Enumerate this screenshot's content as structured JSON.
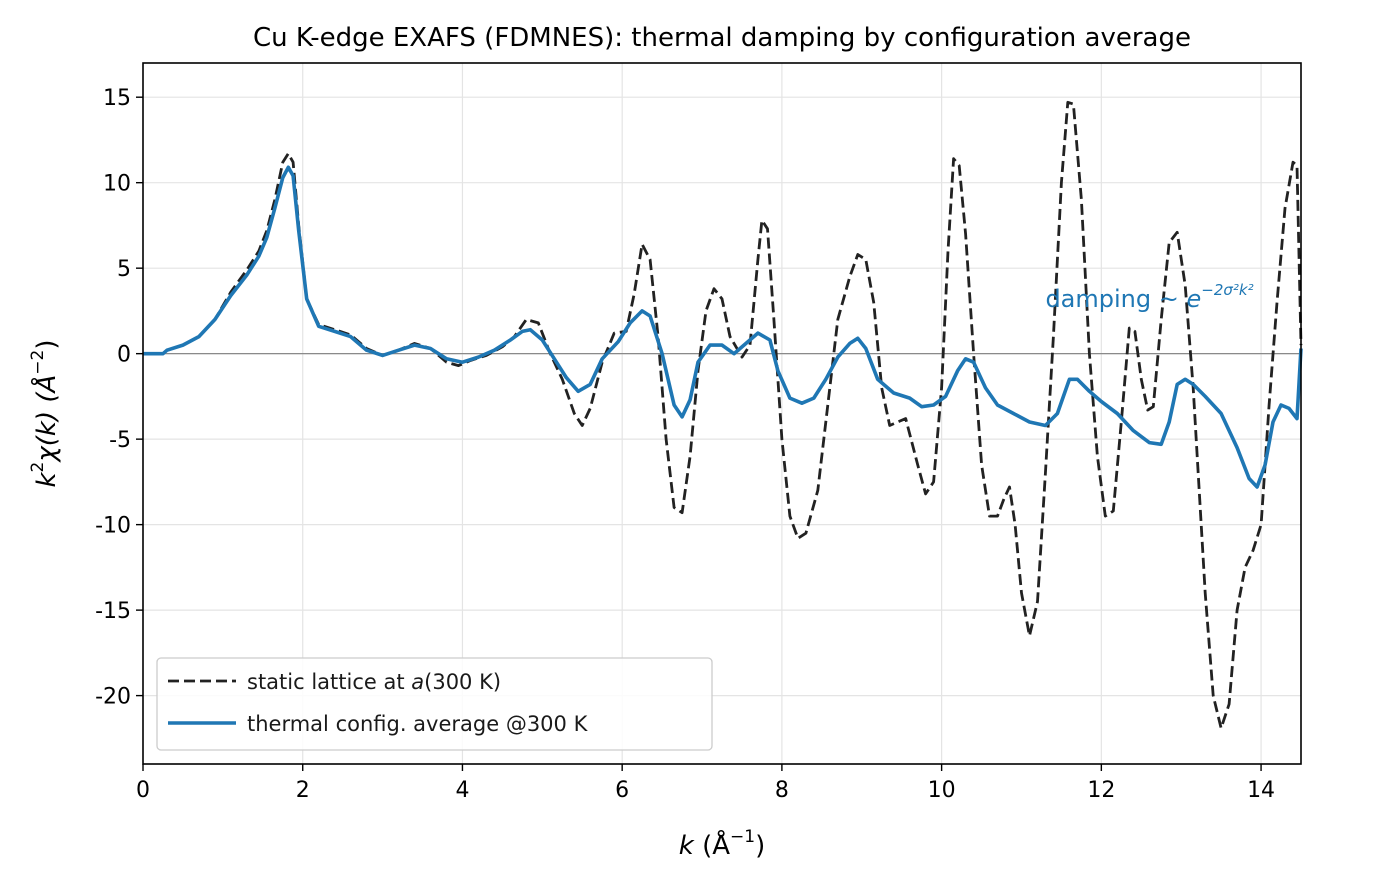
{
  "chart_data": {
    "type": "line",
    "title": "Cu K-edge EXAFS (FDMNES): thermal damping by configuration average",
    "xlabel": {
      "base": "k",
      "unit": " (Å",
      "sup": "−1",
      "close": ")"
    },
    "ylabel": {
      "pre": "k",
      "sup1": "2",
      "mid": "χ(k) (Å",
      "sup2": "−2",
      "close": ")"
    },
    "xlim": [
      0,
      14.5
    ],
    "ylim": [
      -24,
      17
    ],
    "xticks": [
      0,
      2,
      4,
      6,
      8,
      10,
      12,
      14
    ],
    "xtick_labels": [
      "0",
      "2",
      "4",
      "6",
      "8",
      "10",
      "12",
      "14"
    ],
    "yticks": [
      -20,
      -15,
      -10,
      -5,
      0,
      5,
      10,
      15
    ],
    "ytick_labels": [
      "-20",
      "-15",
      "-10",
      "-5",
      "0",
      "5",
      "10",
      "15"
    ],
    "grid": true,
    "legend_position": "lower-left",
    "zero_line": true,
    "annotation": {
      "text": "damping  ~ ",
      "math": "e",
      "sup": "−2σ²k²",
      "x": 11.3,
      "y": 3.2,
      "color": "#1f77b4"
    },
    "series": [
      {
        "name": "static lattice at ",
        "name_math": "a",
        "name_suffix": "(300 K)",
        "style": "dashed",
        "color": "#222222",
        "points": [
          [
            0.0,
            0.0
          ],
          [
            0.25,
            0.0
          ],
          [
            0.3,
            0.2
          ],
          [
            0.5,
            0.5
          ],
          [
            0.7,
            1.0
          ],
          [
            0.9,
            2.0
          ],
          [
            1.1,
            3.6
          ],
          [
            1.3,
            4.9
          ],
          [
            1.45,
            6.0
          ],
          [
            1.55,
            7.2
          ],
          [
            1.65,
            9.0
          ],
          [
            1.75,
            11.2
          ],
          [
            1.82,
            11.7
          ],
          [
            1.88,
            11.2
          ],
          [
            1.95,
            7.5
          ],
          [
            2.05,
            3.2
          ],
          [
            2.2,
            1.7
          ],
          [
            2.4,
            1.4
          ],
          [
            2.6,
            1.1
          ],
          [
            2.8,
            0.3
          ],
          [
            3.0,
            -0.1
          ],
          [
            3.2,
            0.2
          ],
          [
            3.4,
            0.6
          ],
          [
            3.6,
            0.3
          ],
          [
            3.8,
            -0.5
          ],
          [
            3.95,
            -0.7
          ],
          [
            4.1,
            -0.4
          ],
          [
            4.3,
            -0.1
          ],
          [
            4.5,
            0.4
          ],
          [
            4.65,
            1.0
          ],
          [
            4.8,
            2.0
          ],
          [
            4.95,
            1.8
          ],
          [
            5.1,
            0.0
          ],
          [
            5.25,
            -1.5
          ],
          [
            5.4,
            -3.5
          ],
          [
            5.5,
            -4.2
          ],
          [
            5.6,
            -3.2
          ],
          [
            5.75,
            -0.5
          ],
          [
            5.9,
            1.2
          ],
          [
            6.05,
            1.3
          ],
          [
            6.15,
            3.5
          ],
          [
            6.25,
            6.4
          ],
          [
            6.35,
            5.5
          ],
          [
            6.45,
            1.0
          ],
          [
            6.55,
            -5.0
          ],
          [
            6.65,
            -9.0
          ],
          [
            6.75,
            -9.3
          ],
          [
            6.85,
            -6.0
          ],
          [
            6.95,
            -1.0
          ],
          [
            7.05,
            2.5
          ],
          [
            7.15,
            3.8
          ],
          [
            7.25,
            3.2
          ],
          [
            7.35,
            1.0
          ],
          [
            7.5,
            -0.2
          ],
          [
            7.6,
            0.5
          ],
          [
            7.7,
            5.5
          ],
          [
            7.75,
            7.8
          ],
          [
            7.82,
            7.3
          ],
          [
            7.9,
            2.0
          ],
          [
            8.0,
            -5.0
          ],
          [
            8.1,
            -9.5
          ],
          [
            8.2,
            -10.8
          ],
          [
            8.3,
            -10.5
          ],
          [
            8.45,
            -8.0
          ],
          [
            8.6,
            -2.0
          ],
          [
            8.7,
            2.0
          ],
          [
            8.85,
            4.5
          ],
          [
            8.95,
            5.8
          ],
          [
            9.05,
            5.5
          ],
          [
            9.15,
            3.0
          ],
          [
            9.25,
            -2.0
          ],
          [
            9.35,
            -4.2
          ],
          [
            9.45,
            -4.0
          ],
          [
            9.55,
            -3.8
          ],
          [
            9.7,
            -6.5
          ],
          [
            9.8,
            -8.2
          ],
          [
            9.9,
            -7.5
          ],
          [
            10.0,
            -2.0
          ],
          [
            10.08,
            6.0
          ],
          [
            10.15,
            11.4
          ],
          [
            10.22,
            11.0
          ],
          [
            10.3,
            7.0
          ],
          [
            10.4,
            0.0
          ],
          [
            10.5,
            -6.5
          ],
          [
            10.6,
            -9.5
          ],
          [
            10.7,
            -9.5
          ],
          [
            10.78,
            -8.5
          ],
          [
            10.85,
            -7.8
          ],
          [
            10.92,
            -10.0
          ],
          [
            11.0,
            -14.0
          ],
          [
            11.1,
            -16.5
          ],
          [
            11.2,
            -14.5
          ],
          [
            11.3,
            -7.0
          ],
          [
            11.4,
            1.0
          ],
          [
            11.5,
            10.0
          ],
          [
            11.58,
            14.7
          ],
          [
            11.65,
            14.6
          ],
          [
            11.75,
            9.0
          ],
          [
            11.85,
            0.0
          ],
          [
            11.95,
            -6.0
          ],
          [
            12.05,
            -9.5
          ],
          [
            12.15,
            -9.2
          ],
          [
            12.25,
            -4.0
          ],
          [
            12.35,
            1.5
          ],
          [
            12.42,
            1.3
          ],
          [
            12.5,
            -1.5
          ],
          [
            12.58,
            -3.3
          ],
          [
            12.65,
            -3.1
          ],
          [
            12.75,
            2.0
          ],
          [
            12.85,
            6.5
          ],
          [
            12.95,
            7.1
          ],
          [
            13.05,
            4.0
          ],
          [
            13.15,
            -2.0
          ],
          [
            13.3,
            -14.0
          ],
          [
            13.4,
            -20.0
          ],
          [
            13.5,
            -21.9
          ],
          [
            13.6,
            -20.5
          ],
          [
            13.7,
            -15.0
          ],
          [
            13.8,
            -12.5
          ],
          [
            13.9,
            -11.5
          ],
          [
            14.0,
            -10.0
          ],
          [
            14.1,
            -3.0
          ],
          [
            14.2,
            3.0
          ],
          [
            14.3,
            8.5
          ],
          [
            14.4,
            11.2
          ],
          [
            14.45,
            11.0
          ],
          [
            14.5,
            0.5
          ]
        ]
      },
      {
        "name": "thermal config. average @300 K",
        "style": "solid",
        "color": "#1f77b4",
        "points": [
          [
            0.0,
            0.0
          ],
          [
            0.25,
            0.0
          ],
          [
            0.3,
            0.2
          ],
          [
            0.5,
            0.5
          ],
          [
            0.7,
            1.0
          ],
          [
            0.9,
            2.0
          ],
          [
            1.1,
            3.4
          ],
          [
            1.3,
            4.6
          ],
          [
            1.45,
            5.7
          ],
          [
            1.55,
            6.8
          ],
          [
            1.65,
            8.5
          ],
          [
            1.75,
            10.3
          ],
          [
            1.82,
            10.9
          ],
          [
            1.88,
            10.4
          ],
          [
            1.95,
            7.2
          ],
          [
            2.05,
            3.2
          ],
          [
            2.2,
            1.6
          ],
          [
            2.4,
            1.3
          ],
          [
            2.6,
            1.0
          ],
          [
            2.8,
            0.2
          ],
          [
            3.0,
            -0.1
          ],
          [
            3.2,
            0.2
          ],
          [
            3.4,
            0.5
          ],
          [
            3.6,
            0.3
          ],
          [
            3.8,
            -0.3
          ],
          [
            4.0,
            -0.5
          ],
          [
            4.2,
            -0.2
          ],
          [
            4.4,
            0.2
          ],
          [
            4.6,
            0.8
          ],
          [
            4.75,
            1.3
          ],
          [
            4.85,
            1.4
          ],
          [
            5.0,
            0.8
          ],
          [
            5.15,
            -0.3
          ],
          [
            5.3,
            -1.4
          ],
          [
            5.45,
            -2.2
          ],
          [
            5.6,
            -1.8
          ],
          [
            5.75,
            -0.3
          ],
          [
            5.95,
            0.7
          ],
          [
            6.1,
            1.8
          ],
          [
            6.25,
            2.5
          ],
          [
            6.35,
            2.2
          ],
          [
            6.5,
            0.0
          ],
          [
            6.65,
            -3.0
          ],
          [
            6.75,
            -3.7
          ],
          [
            6.85,
            -2.7
          ],
          [
            6.95,
            -0.5
          ],
          [
            7.1,
            0.5
          ],
          [
            7.25,
            0.5
          ],
          [
            7.4,
            0.0
          ],
          [
            7.55,
            0.6
          ],
          [
            7.7,
            1.2
          ],
          [
            7.85,
            0.8
          ],
          [
            7.95,
            -1.0
          ],
          [
            8.1,
            -2.6
          ],
          [
            8.25,
            -2.9
          ],
          [
            8.4,
            -2.6
          ],
          [
            8.55,
            -1.5
          ],
          [
            8.7,
            -0.2
          ],
          [
            8.85,
            0.6
          ],
          [
            8.95,
            0.9
          ],
          [
            9.05,
            0.3
          ],
          [
            9.2,
            -1.5
          ],
          [
            9.4,
            -2.3
          ],
          [
            9.6,
            -2.6
          ],
          [
            9.75,
            -3.1
          ],
          [
            9.9,
            -3.0
          ],
          [
            10.05,
            -2.5
          ],
          [
            10.2,
            -1.0
          ],
          [
            10.3,
            -0.3
          ],
          [
            10.4,
            -0.5
          ],
          [
            10.55,
            -2.0
          ],
          [
            10.7,
            -3.0
          ],
          [
            10.9,
            -3.5
          ],
          [
            11.1,
            -4.0
          ],
          [
            11.3,
            -4.2
          ],
          [
            11.45,
            -3.5
          ],
          [
            11.6,
            -1.5
          ],
          [
            11.7,
            -1.5
          ],
          [
            11.85,
            -2.2
          ],
          [
            12.0,
            -2.8
          ],
          [
            12.2,
            -3.5
          ],
          [
            12.4,
            -4.5
          ],
          [
            12.6,
            -5.2
          ],
          [
            12.75,
            -5.3
          ],
          [
            12.85,
            -4.0
          ],
          [
            12.95,
            -1.8
          ],
          [
            13.05,
            -1.5
          ],
          [
            13.15,
            -1.8
          ],
          [
            13.3,
            -2.5
          ],
          [
            13.5,
            -3.5
          ],
          [
            13.7,
            -5.5
          ],
          [
            13.85,
            -7.3
          ],
          [
            13.95,
            -7.8
          ],
          [
            14.05,
            -6.5
          ],
          [
            14.15,
            -4.0
          ],
          [
            14.25,
            -3.0
          ],
          [
            14.35,
            -3.2
          ],
          [
            14.45,
            -3.8
          ],
          [
            14.5,
            0.3
          ]
        ]
      }
    ]
  }
}
